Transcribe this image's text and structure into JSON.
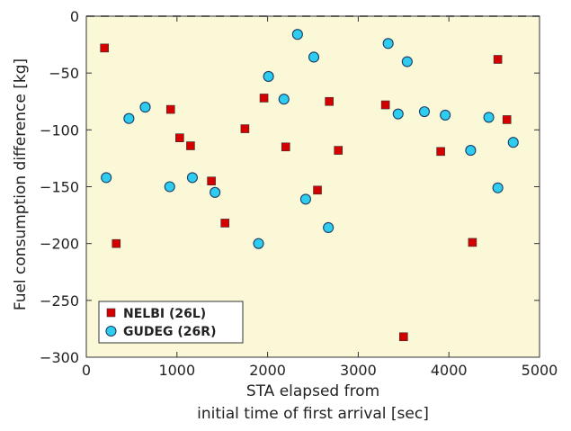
{
  "chart_data": {
    "type": "scatter",
    "xlabel": [
      "STA elapsed from",
      "initial time of first arrival [sec]"
    ],
    "ylabel": "Fuel consumption difference [kg]",
    "xlim": [
      0,
      5000
    ],
    "ylim": [
      -300,
      0
    ],
    "xticks": [
      0,
      1000,
      2000,
      3000,
      4000,
      5000
    ],
    "yticks": [
      0,
      -50,
      -100,
      -150,
      -200,
      -250,
      -300
    ],
    "grid": false,
    "zero_reference_line": "dashed",
    "legend_position": "bottom-left",
    "background_color": "#fbf8d8",
    "series": [
      {
        "name": "NELBI (26L)",
        "marker": "square",
        "color": "#d40000",
        "x": [
          200,
          330,
          930,
          1030,
          1150,
          1380,
          1530,
          1750,
          1960,
          2200,
          2550,
          2680,
          2780,
          3300,
          3500,
          3910,
          4260,
          4540,
          4640
        ],
        "y": [
          -28,
          -200,
          -82,
          -107,
          -114,
          -145,
          -182,
          -99,
          -72,
          -115,
          -153,
          -75,
          -118,
          -78,
          -282,
          -119,
          -199,
          -38,
          -91
        ]
      },
      {
        "name": "GUDEG (26R)",
        "marker": "circle",
        "color": "#2ecdf0",
        "x": [
          220,
          470,
          650,
          920,
          1170,
          1420,
          1900,
          2010,
          2180,
          2330,
          2420,
          2510,
          2670,
          3330,
          3440,
          3540,
          3730,
          3960,
          4240,
          4440,
          4540,
          4710
        ],
        "y": [
          -142,
          -90,
          -80,
          -150,
          -142,
          -155,
          -200,
          -53,
          -73,
          -16,
          -161,
          -36,
          -186,
          -24,
          -86,
          -40,
          -84,
          -87,
          -118,
          -89,
          -151,
          -111
        ]
      }
    ]
  }
}
